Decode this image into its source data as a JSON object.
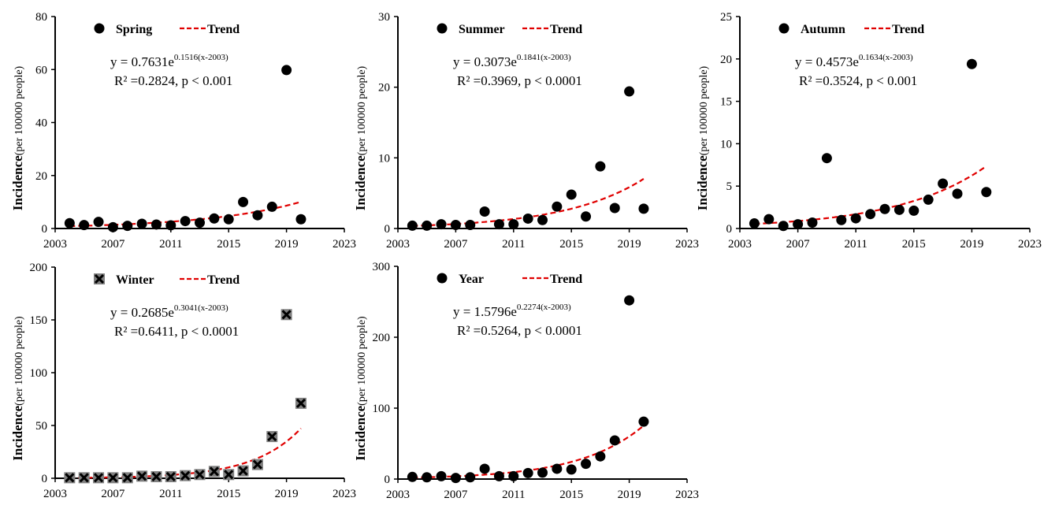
{
  "chart_data": [
    {
      "type": "scatter",
      "series_name": "Spring",
      "marker": "circle",
      "trend_label": "Trend",
      "ylabel_main": "Incidence",
      "ylabel_unit": "(per 100000 people)",
      "x_ticks": [
        "2003",
        "2007",
        "2011",
        "2015",
        "2019",
        "2023"
      ],
      "y_ticks": [
        "0",
        "20",
        "40",
        "60",
        "80"
      ],
      "xlim": [
        2003,
        2023
      ],
      "ylim": [
        0,
        80
      ],
      "x": [
        2004,
        2005,
        2006,
        2007,
        2008,
        2009,
        2010,
        2011,
        2012,
        2013,
        2014,
        2015,
        2016,
        2017,
        2018,
        2019,
        2020
      ],
      "values": [
        2.0,
        1.3,
        2.5,
        0.5,
        1.0,
        1.8,
        1.5,
        1.2,
        2.8,
        2.2,
        3.8,
        3.5,
        10.0,
        5.0,
        8.2,
        59.8,
        3.5
      ],
      "trend": {
        "a": 0.7631,
        "b": 0.1516,
        "x0": 2003
      },
      "eq_base": "y = 0.7631e",
      "eq_exp": "0.1516(x-2003)",
      "stats": "R² =0.2824,  p < 0.001"
    },
    {
      "type": "scatter",
      "series_name": "Summer",
      "marker": "circle",
      "trend_label": "Trend",
      "ylabel_main": "Incidence",
      "ylabel_unit": "(per 100000 people)",
      "x_ticks": [
        "2003",
        "2007",
        "2011",
        "2015",
        "2019",
        "2023"
      ],
      "y_ticks": [
        "0",
        "10",
        "20",
        "30"
      ],
      "xlim": [
        2003,
        2023
      ],
      "ylim": [
        0,
        30
      ],
      "x": [
        2004,
        2005,
        2006,
        2007,
        2008,
        2009,
        2010,
        2011,
        2012,
        2013,
        2014,
        2015,
        2016,
        2017,
        2018,
        2019,
        2020
      ],
      "values": [
        0.4,
        0.4,
        0.6,
        0.5,
        0.5,
        2.4,
        0.6,
        0.6,
        1.4,
        1.2,
        3.1,
        4.8,
        1.7,
        8.8,
        2.9,
        19.4,
        2.8
      ],
      "trend": {
        "a": 0.3073,
        "b": 0.1841,
        "x0": 2003
      },
      "eq_base": "y = 0.3073e",
      "eq_exp": "0.1841(x-2003)",
      "stats": "R² =0.3969,  p < 0.0001"
    },
    {
      "type": "scatter",
      "series_name": "Autumn",
      "marker": "circle",
      "trend_label": "Trend",
      "ylabel_main": "Incidence",
      "ylabel_unit": "(per 100000 people)",
      "x_ticks": [
        "2003",
        "2007",
        "2011",
        "2015",
        "2019",
        "2023"
      ],
      "y_ticks": [
        "0",
        "5",
        "10",
        "15",
        "20",
        "25"
      ],
      "xlim": [
        2003,
        2023
      ],
      "ylim": [
        0,
        25
      ],
      "x": [
        2004,
        2005,
        2006,
        2007,
        2008,
        2009,
        2010,
        2011,
        2012,
        2013,
        2014,
        2015,
        2016,
        2017,
        2018,
        2019,
        2020
      ],
      "values": [
        0.6,
        1.1,
        0.3,
        0.5,
        0.7,
        8.3,
        1.0,
        1.2,
        1.7,
        2.3,
        2.2,
        2.1,
        3.4,
        5.3,
        4.1,
        19.4,
        4.3
      ],
      "trend": {
        "a": 0.4573,
        "b": 0.1634,
        "x0": 2003
      },
      "eq_base": "y = 0.4573e",
      "eq_exp": "0.1634(x-2003)",
      "stats": "R² =0.3524,  p < 0.001"
    },
    {
      "type": "scatter",
      "series_name": "Winter",
      "marker": "x-square",
      "trend_label": "Trend",
      "ylabel_main": "Incidence",
      "ylabel_unit": "(per 100000 people)",
      "x_ticks": [
        "2003",
        "2007",
        "2011",
        "2015",
        "2019",
        "2023"
      ],
      "y_ticks": [
        "0",
        "50",
        "100",
        "150",
        "200"
      ],
      "xlim": [
        2003,
        2023
      ],
      "ylim": [
        0,
        200
      ],
      "x": [
        2004,
        2005,
        2006,
        2007,
        2008,
        2009,
        2010,
        2011,
        2012,
        2013,
        2014,
        2015,
        2016,
        2017,
        2018,
        2019,
        2020
      ],
      "values": [
        0.5,
        0.5,
        0.5,
        0.5,
        0.5,
        2.0,
        1.5,
        1.5,
        2.5,
        3.5,
        6.5,
        3.5,
        7.0,
        13.0,
        39.5,
        155.0,
        71.0
      ],
      "trend": {
        "a": 0.2685,
        "b": 0.3041,
        "x0": 2003
      },
      "eq_base": "y = 0.2685e",
      "eq_exp": "0.3041(x-2003)",
      "stats": "R² =0.6411,  p < 0.0001"
    },
    {
      "type": "scatter",
      "series_name": "Year",
      "marker": "circle",
      "trend_label": "Trend",
      "ylabel_main": "Incidence",
      "ylabel_unit": "(per 100000 people)",
      "x_ticks": [
        "2003",
        "2007",
        "2011",
        "2015",
        "2019",
        "2023"
      ],
      "y_ticks": [
        "0",
        "100",
        "200",
        "300"
      ],
      "xlim": [
        2003,
        2023
      ],
      "ylim": [
        0,
        300
      ],
      "x": [
        2004,
        2005,
        2006,
        2007,
        2008,
        2009,
        2010,
        2011,
        2012,
        2013,
        2014,
        2015,
        2016,
        2017,
        2018,
        2019,
        2020
      ],
      "values": [
        3.0,
        2.5,
        4.0,
        1.5,
        2.5,
        14.5,
        4.0,
        4.0,
        8.5,
        9.0,
        14.5,
        13.5,
        21.5,
        32.0,
        54.5,
        252.0,
        81.0
      ],
      "trend": {
        "a": 1.5796,
        "b": 0.2274,
        "x0": 2003
      },
      "eq_base": "y = 1.5796e",
      "eq_exp": "0.2274(x-2003)",
      "stats": "R² =0.5264,  p < 0.0001"
    }
  ],
  "colors": {
    "marker": "#000000",
    "trend": "#e00000",
    "marker_x_fill": "#808080"
  }
}
